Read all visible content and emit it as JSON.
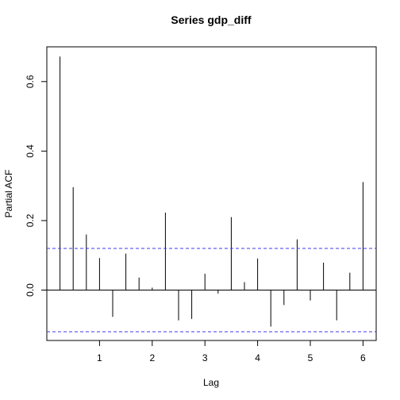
{
  "chart_data": {
    "type": "bar",
    "title": "Series  gdp_diff",
    "xlabel": "Lag",
    "ylabel": "Partial ACF",
    "xlim": [
      0.0,
      6.25
    ],
    "ylim": [
      -0.145,
      0.7
    ],
    "x_ticks": [
      1,
      2,
      3,
      4,
      5,
      6
    ],
    "y_ticks": [
      0.0,
      0.2,
      0.4,
      0.6
    ],
    "x_tick_labels": [
      "1",
      "2",
      "3",
      "4",
      "5",
      "6"
    ],
    "y_tick_labels": [
      "0.0",
      "0.2",
      "0.4",
      "0.6"
    ],
    "confidence_bounds": [
      0.12,
      -0.12
    ],
    "confidence_color": "#3a3af0",
    "grid": false,
    "series": [
      {
        "lags": [
          0.25,
          0.5,
          0.75,
          1.0,
          1.25,
          1.5,
          1.75,
          2.0,
          2.25,
          2.5,
          2.75,
          3.0,
          3.25,
          3.5,
          3.75,
          4.0,
          4.25,
          4.5,
          4.75,
          5.0,
          5.25,
          5.5,
          5.75,
          6.0
        ],
        "values": [
          0.672,
          0.296,
          0.16,
          0.092,
          -0.077,
          0.105,
          0.036,
          0.007,
          0.223,
          -0.087,
          -0.083,
          0.047,
          -0.01,
          0.21,
          0.023,
          0.091,
          -0.105,
          -0.043,
          0.146,
          -0.03,
          0.079,
          -0.087,
          0.05,
          0.311
        ]
      }
    ]
  }
}
